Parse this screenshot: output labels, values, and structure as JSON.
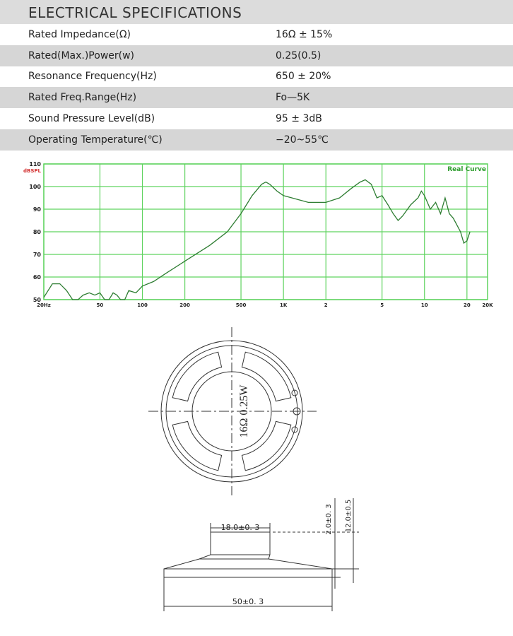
{
  "specifications": {
    "title": "ELECTRICAL SPECIFICATIONS",
    "rows": [
      [
        "Rated  Impedance(Ω)",
        "16Ω ± 15%"
      ],
      [
        "Rated(Max.)Power(w)",
        "0.25(0.5)"
      ],
      [
        "Resonance  Frequency(Hz)",
        "650 ± 20%"
      ],
      [
        "Rated  Freq.Range(Hz)",
        "Fo—5K"
      ],
      [
        "Sound  Pressure  Level(dB)",
        "95 ± 3dB"
      ],
      [
        "Operating  Temperature(℃)",
        "−20~55℃"
      ]
    ]
  },
  "chart_data": {
    "type": "line",
    "y_label": "dBSPL",
    "annotation": "Real Curve",
    "x_scale": "log",
    "grid": true,
    "grid_color": "#5fd35f",
    "x": [
      20,
      23,
      26,
      29,
      32,
      35,
      38,
      42,
      46,
      50,
      54,
      58,
      62,
      66,
      70,
      75,
      80,
      90,
      100,
      120,
      150,
      200,
      300,
      400,
      500,
      600,
      700,
      750,
      800,
      900,
      1000,
      1500,
      2000,
      2500,
      3000,
      3500,
      3800,
      4200,
      4600,
      5000,
      5500,
      6000,
      6500,
      7000,
      8000,
      9000,
      9500,
      10000,
      11000,
      12000,
      13000,
      14000,
      15000,
      16000,
      18000,
      19000,
      20000,
      21000
    ],
    "series": [
      {
        "color": "#2e7d32",
        "values": [
          51,
          57,
          57,
          54,
          50,
          50,
          52,
          53,
          52,
          53,
          50,
          50,
          53,
          52,
          50,
          50,
          54,
          53,
          56,
          58,
          62,
          67,
          74,
          80,
          88,
          96,
          101,
          102,
          101,
          98,
          96,
          93,
          93,
          95,
          99,
          102,
          103,
          101,
          95,
          96,
          92,
          88,
          85,
          87,
          92,
          95,
          98,
          96,
          90,
          93,
          88,
          95,
          88,
          86,
          80,
          75,
          76,
          80
        ]
      }
    ],
    "xlim": [
      20,
      28000
    ],
    "ylim": [
      50,
      110
    ],
    "xticks": [
      {
        "value": 20,
        "label": "20Hz"
      },
      50,
      100,
      200,
      500,
      {
        "value": 1000,
        "label": "1K"
      },
      {
        "value": 2000,
        "label": "2"
      },
      {
        "value": 5000,
        "label": "5"
      },
      {
        "value": 10000,
        "label": "10"
      },
      {
        "value": 20000,
        "label": "20"
      }
    ],
    "x_end_label": "20K",
    "yticks": [
      50,
      60,
      70,
      80,
      90,
      100,
      110
    ]
  },
  "drawing": {
    "marking": "16Ω 0.25W",
    "dim_magnet": "18.0±0. 3",
    "dim_diameter": "50±0. 3",
    "dim_flange": "2.0±0. 3",
    "dim_height": "12.0±0.5"
  }
}
